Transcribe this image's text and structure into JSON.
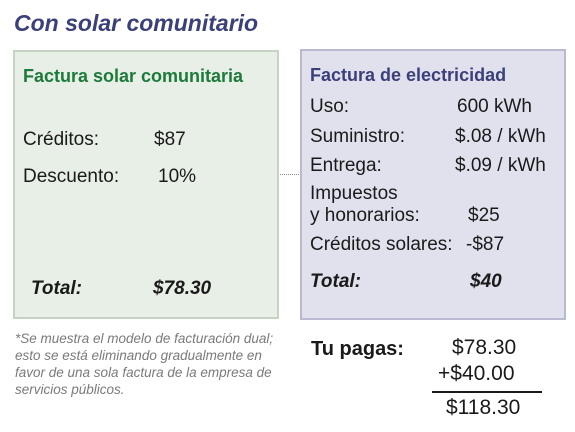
{
  "title": "Con solar comunitario",
  "solar_bill": {
    "title": "Factura solar comunitaria",
    "rows": [
      {
        "label": "Créditos:",
        "value": "$87"
      },
      {
        "label": "Descuento:",
        "value": "10%"
      }
    ],
    "total_label": "Total:",
    "total_value": "$78.30"
  },
  "electric_bill": {
    "title": "Factura de electricidad",
    "rows": [
      {
        "label": "Uso:",
        "value": "600 kWh"
      },
      {
        "label": "Suministro:",
        "value": "$.08 / kWh"
      },
      {
        "label": "Entrega:",
        "value": "$.09 / kWh"
      },
      {
        "label_line1": "Impuestos",
        "label_line2": "y honorarios:",
        "value": "$25"
      },
      {
        "label": "Créditos solares:",
        "value": "-$87"
      }
    ],
    "total_label": "Total:",
    "total_value": "$40"
  },
  "footnote": "*Se muestra el modelo de facturación dual; esto se está eliminando gradualmente en favor de una sola factura de la empresa de servicios públicos.",
  "payment": {
    "label": "Tu pagas:",
    "line1": "$78.30",
    "line2": "+$40.00",
    "result": "$118.30"
  },
  "colors": {
    "title": "#3b3f7a",
    "solar_title": "#1c7a3a",
    "solar_bg": "#e8efe6",
    "electric_bg": "#e1e1ee"
  }
}
